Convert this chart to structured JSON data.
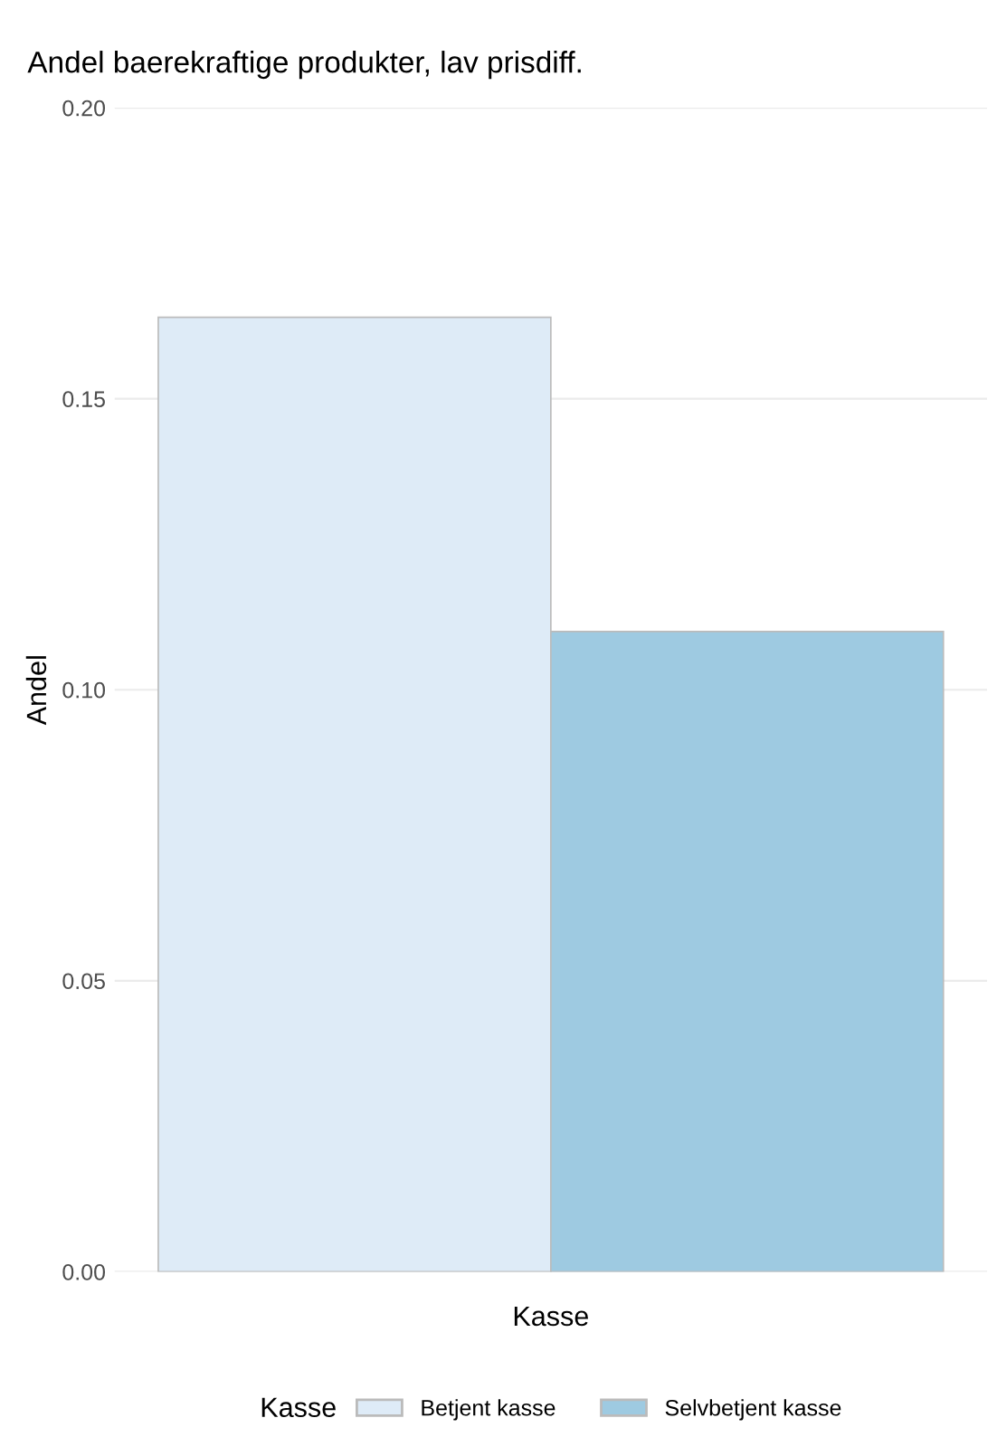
{
  "chart_data": {
    "type": "bar",
    "title": "Andel baerekraftige produkter, lav prisdiff.",
    "xlabel": "Kasse",
    "ylabel": "Andel",
    "legend_title": "Kasse",
    "categories": [
      null
    ],
    "series": [
      {
        "name": "Betjent kasse",
        "color": "#deebf7",
        "values": [
          0.164
        ]
      },
      {
        "name": "Selvbetjent kasse",
        "color": "#9ecae1",
        "values": [
          0.11
        ]
      }
    ],
    "ylim": [
      0,
      0.2
    ],
    "yticks": [
      {
        "value": 0,
        "label": "0.00"
      },
      0.05,
      {
        "value": 0.1,
        "label": "0.10"
      },
      0.15,
      {
        "value": 0.2,
        "label": "0.20"
      }
    ],
    "grid": "y",
    "legend": "bottom"
  }
}
